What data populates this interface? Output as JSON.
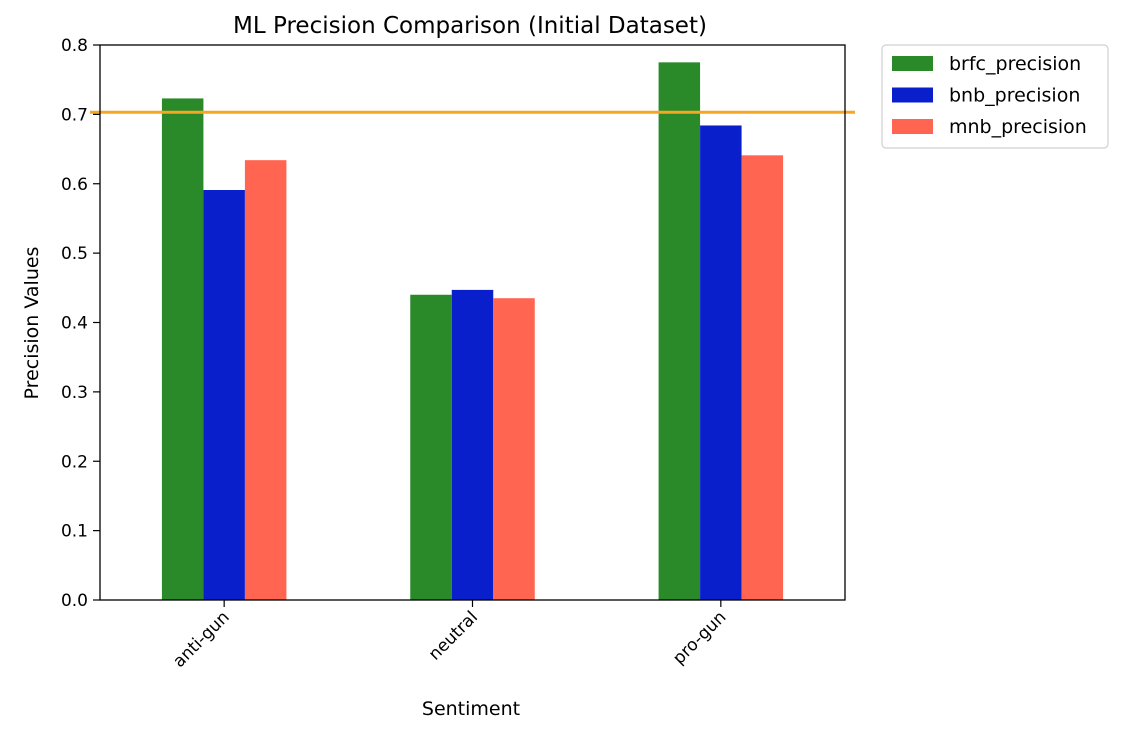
{
  "chart_data": {
    "type": "bar",
    "title": "ML Precision Comparison (Initial Dataset)",
    "xlabel": "Sentiment",
    "ylabel": "Precision Values",
    "categories": [
      "anti-gun",
      "neutral",
      "pro-gun"
    ],
    "series": [
      {
        "name": "brfc_precision",
        "color": "#2a8a2a",
        "values": [
          0.723,
          0.44,
          0.775
        ]
      },
      {
        "name": "bnb_precision",
        "color": "#0a1fcc",
        "values": [
          0.591,
          0.447,
          0.684
        ]
      },
      {
        "name": "mnb_precision",
        "color": "#ff6550",
        "values": [
          0.634,
          0.435,
          0.641
        ]
      }
    ],
    "ylim": [
      0.0,
      0.8
    ],
    "yticks": [
      "0.0",
      "0.1",
      "0.2",
      "0.3",
      "0.4",
      "0.5",
      "0.6",
      "0.7",
      "0.8"
    ],
    "reference_line": {
      "y": 0.703,
      "color": "#f5a623"
    },
    "grid": false,
    "legend": {
      "placement": "outside-top-right"
    }
  }
}
